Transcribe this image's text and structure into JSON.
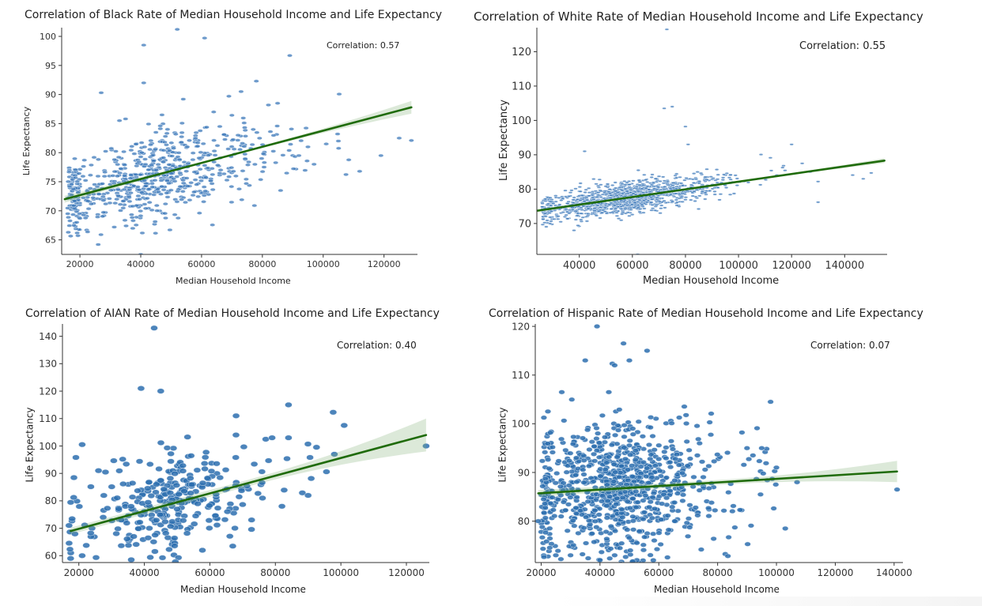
{
  "chart_data": [
    {
      "type": "scatter",
      "title": "Correlation of Black Rate of Median Household Income and Life Expectancy",
      "annotation": "Correlation: 0.57",
      "xlabel": "Median Household Income",
      "ylabel": "Life Expectancy",
      "xlim": [
        14000,
        131000
      ],
      "ylim": [
        62.5,
        101.5
      ],
      "xticks": [
        20000,
        40000,
        60000,
        80000,
        100000,
        120000
      ],
      "yticks": [
        65,
        70,
        75,
        80,
        85,
        90,
        95,
        100
      ],
      "regression": {
        "x": [
          15000,
          129000
        ],
        "y": [
          72.0,
          87.8
        ]
      },
      "ci_band": {
        "halfwidth_at_ends": [
          0.6,
          1.1
        ],
        "halfwidth_at_center": 0.15
      },
      "points": [
        [
          41000,
          98.5
        ],
        [
          52000,
          101.2
        ],
        [
          61000,
          99.7
        ],
        [
          89000,
          96.7
        ],
        [
          41000,
          92
        ],
        [
          78000,
          92.3
        ],
        [
          27000,
          90.3
        ],
        [
          54000,
          89.2
        ],
        [
          69000,
          89.7
        ],
        [
          73000,
          90.5
        ],
        [
          82000,
          88.2
        ],
        [
          85000,
          88.5
        ],
        [
          64000,
          87
        ],
        [
          35000,
          85.8
        ],
        [
          33000,
          85.5
        ],
        [
          47000,
          86.5
        ],
        [
          112000,
          76.8
        ],
        [
          119000,
          79.5
        ],
        [
          125000,
          82.5
        ],
        [
          129000,
          82.1
        ],
        [
          40000,
          62.5
        ],
        [
          26000,
          64.2
        ],
        [
          16000,
          69.5
        ],
        [
          18000,
          67.5
        ],
        [
          92000,
          79.5
        ],
        [
          95000,
          81
        ],
        [
          86000,
          73.5
        ],
        [
          97000,
          78
        ],
        [
          105000,
          82
        ],
        [
          101000,
          81.5
        ],
        [
          77000,
          84
        ],
        [
          66000,
          84.5
        ],
        [
          72000,
          83
        ],
        [
          58000,
          82.5
        ],
        [
          45000,
          83.5
        ]
      ],
      "cloud": {
        "n": 700,
        "cx": 42000,
        "sx": 16000,
        "cy": 75.5,
        "sy": 4,
        "rho": 0.55,
        "clipx": [
          16000,
          112000
        ]
      }
    },
    {
      "type": "scatter",
      "title": "Correlation of White Rate of Median Household Income and Life Expectancy",
      "annotation": "Correlation: 0.55",
      "xlabel": "Median Household Income",
      "ylabel": "Life Expectancy",
      "xlim": [
        24000,
        156000
      ],
      "ylim": [
        61,
        127
      ],
      "xticks": [
        40000,
        60000,
        80000,
        100000,
        120000,
        140000
      ],
      "yticks": [
        70,
        80,
        90,
        100,
        110,
        120
      ],
      "regression": {
        "x": [
          24000,
          155000
        ],
        "y": [
          73.7,
          88.3
        ]
      },
      "ci_band": {
        "halfwidth_at_ends": [
          0.4,
          0.7
        ],
        "halfwidth_at_center": 0.1
      },
      "points": [
        [
          73000,
          126.5
        ],
        [
          72000,
          103.5
        ],
        [
          75000,
          104
        ],
        [
          80000,
          98.2
        ],
        [
          81000,
          93
        ],
        [
          120000,
          93
        ],
        [
          124000,
          87.5
        ],
        [
          127000,
          85
        ],
        [
          130000,
          76.2
        ],
        [
          150000,
          84.7
        ],
        [
          147000,
          83
        ],
        [
          143000,
          84.1
        ],
        [
          130000,
          82.2
        ],
        [
          42000,
          91
        ],
        [
          62000,
          61
        ],
        [
          33000,
          70.5
        ],
        [
          29000,
          71.8
        ],
        [
          38000,
          68
        ]
      ],
      "cloud": {
        "n": 1400,
        "cx": 58000,
        "sx": 12000,
        "cy": 77.5,
        "sy": 2.6,
        "rho": 0.55,
        "clipx": [
          26000,
          130000
        ]
      }
    },
    {
      "type": "scatter",
      "title": "Correlation of AIAN Rate of Median Household Income and Life Expectancy",
      "annotation": "Correlation: 0.40",
      "xlabel": "Median Household Income",
      "ylabel": "Life Expectancy",
      "xlim": [
        15000,
        127000
      ],
      "ylim": [
        57.5,
        144.5
      ],
      "xticks": [
        20000,
        40000,
        60000,
        80000,
        100000,
        120000
      ],
      "yticks": [
        60,
        70,
        80,
        90,
        100,
        110,
        120,
        130,
        140
      ],
      "regression": {
        "x": [
          17500,
          126000
        ],
        "y": [
          69.0,
          104.0
        ]
      },
      "ci_band": {
        "halfwidth_at_ends": [
          1.2,
          6.0
        ],
        "halfwidth_at_center": 1.2
      },
      "points": [
        [
          43000,
          143
        ],
        [
          39000,
          121
        ],
        [
          45000,
          120
        ],
        [
          21000,
          100.5
        ],
        [
          101000,
          107.5
        ],
        [
          126000,
          100
        ],
        [
          84000,
          115
        ],
        [
          68000,
          111
        ],
        [
          98000,
          97
        ],
        [
          90000,
          82
        ],
        [
          82000,
          78
        ],
        [
          79000,
          103
        ],
        [
          84000,
          103
        ],
        [
          67000,
          63.5
        ],
        [
          36000,
          58.5
        ],
        [
          21000,
          60
        ],
        [
          26000,
          91
        ],
        [
          17000,
          71
        ]
      ],
      "cloud": {
        "n": 320,
        "cx": 48000,
        "sx": 11000,
        "cy": 78.5,
        "sy": 9,
        "rho": 0.35,
        "clipx": [
          17000,
          100000
        ]
      }
    },
    {
      "type": "scatter",
      "title": "Correlation of Hispanic Rate of Median Household Income and Life Expectancy",
      "annotation": "Correlation: 0.07",
      "xlabel": "Median Household Income",
      "ylabel": "Life Expectancy",
      "xlim": [
        18000,
        143000
      ],
      "ylim": [
        71.5,
        120.5
      ],
      "xticks": [
        20000,
        40000,
        60000,
        80000,
        100000,
        120000,
        140000
      ],
      "yticks": [
        80,
        90,
        100,
        110,
        120
      ],
      "regression": {
        "x": [
          19000,
          141000
        ],
        "y": [
          85.7,
          90.2
        ]
      },
      "ci_band": {
        "halfwidth_at_ends": [
          0.7,
          2.2
        ],
        "halfwidth_at_center": 0.5
      },
      "points": [
        [
          39000,
          120
        ],
        [
          48000,
          116.5
        ],
        [
          50000,
          113
        ],
        [
          56000,
          115
        ],
        [
          35000,
          113
        ],
        [
          45000,
          112
        ],
        [
          141000,
          86.5
        ],
        [
          103000,
          78.5
        ],
        [
          98000,
          104.5
        ],
        [
          90000,
          95
        ],
        [
          95000,
          95
        ],
        [
          92000,
          93.5
        ],
        [
          19000,
          80
        ],
        [
          25000,
          73
        ],
        [
          30000,
          73
        ],
        [
          40000,
          72
        ],
        [
          45000,
          73
        ],
        [
          27000,
          106.5
        ],
        [
          43000,
          106.5
        ],
        [
          100000,
          91
        ],
        [
          107000,
          88
        ]
      ],
      "cloud": {
        "n": 950,
        "cx": 46000,
        "sx": 13000,
        "cy": 86.5,
        "sy": 7,
        "rho": 0.07,
        "clipx": [
          20000,
          100000
        ]
      }
    }
  ]
}
